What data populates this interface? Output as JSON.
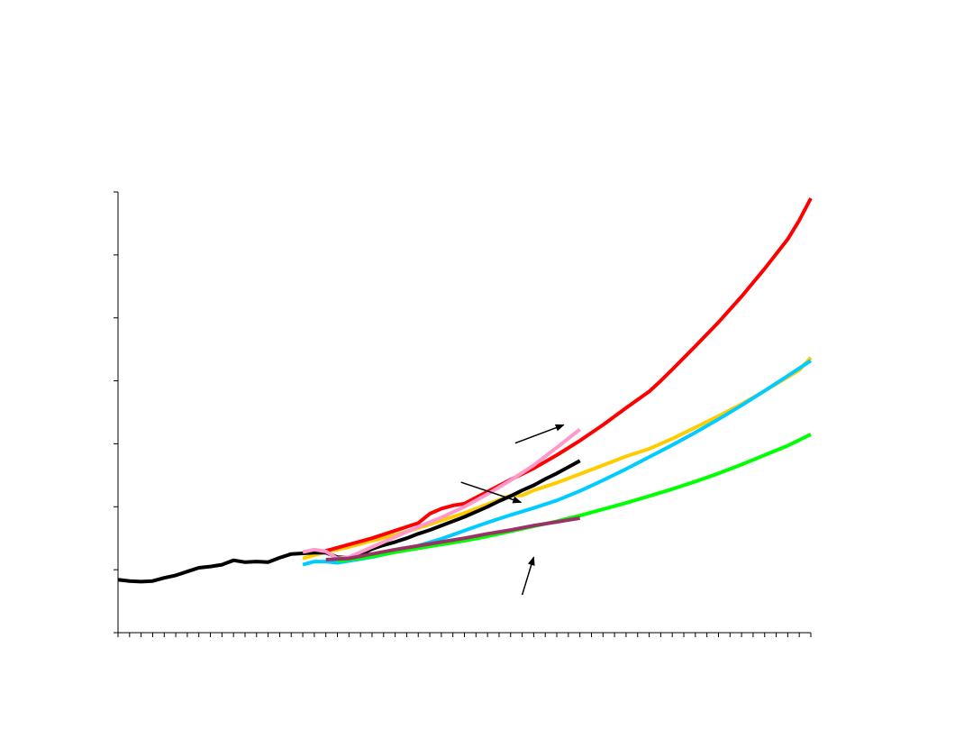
{
  "chart_data": {
    "type": "line",
    "title": "",
    "xlabel": "",
    "ylabel": "",
    "x_tick_count": 61,
    "xlim": [
      0,
      60
    ],
    "ylim": [
      0,
      7
    ],
    "y_tick_values": [
      0,
      1,
      2,
      3,
      4,
      5,
      6,
      7
    ],
    "grid": false,
    "legend": "none",
    "series": [
      {
        "color": "#000000",
        "points": [
          [
            0,
            0.84
          ],
          [
            1,
            0.82
          ],
          [
            2,
            0.81
          ],
          [
            3,
            0.82
          ],
          [
            4,
            0.87
          ],
          [
            5,
            0.91
          ],
          [
            6,
            0.97
          ],
          [
            7,
            1.03
          ],
          [
            8,
            1.05
          ],
          [
            9,
            1.08
          ],
          [
            10,
            1.15
          ],
          [
            11,
            1.12
          ],
          [
            12,
            1.13
          ],
          [
            13,
            1.12
          ],
          [
            14,
            1.19
          ],
          [
            15,
            1.25
          ],
          [
            16,
            1.26
          ],
          [
            17,
            1.27
          ],
          [
            18,
            1.27
          ],
          [
            19,
            1.2
          ],
          [
            20,
            1.19
          ],
          [
            21,
            1.24
          ],
          [
            22,
            1.33
          ],
          [
            23,
            1.39
          ],
          [
            24,
            1.44
          ],
          [
            25,
            1.5
          ],
          [
            26,
            1.57
          ],
          [
            27,
            1.63
          ],
          [
            28,
            1.7
          ],
          [
            29,
            1.77
          ],
          [
            30,
            1.84
          ],
          [
            31,
            1.92
          ],
          [
            32,
            2.0
          ],
          [
            33,
            2.09
          ],
          [
            34,
            2.17
          ],
          [
            35,
            2.26
          ],
          [
            36,
            2.34
          ],
          [
            37,
            2.44
          ],
          [
            38,
            2.53
          ],
          [
            39,
            2.63
          ],
          [
            40,
            2.73
          ]
        ]
      },
      {
        "color": "#ff0000",
        "points": [
          [
            16,
            1.27
          ],
          [
            18,
            1.3
          ],
          [
            20,
            1.4
          ],
          [
            22,
            1.5
          ],
          [
            24,
            1.62
          ],
          [
            26,
            1.74
          ],
          [
            27,
            1.89
          ],
          [
            28,
            1.97
          ],
          [
            29,
            2.02
          ],
          [
            30,
            2.05
          ],
          [
            32,
            2.24
          ],
          [
            34,
            2.43
          ],
          [
            36,
            2.61
          ],
          [
            38,
            2.82
          ],
          [
            40,
            3.05
          ],
          [
            42,
            3.3
          ],
          [
            44,
            3.57
          ],
          [
            46,
            3.83
          ],
          [
            47,
            4.0
          ],
          [
            48,
            4.18
          ],
          [
            50,
            4.55
          ],
          [
            52,
            4.93
          ],
          [
            54,
            5.34
          ],
          [
            56,
            5.78
          ],
          [
            58,
            6.25
          ],
          [
            59,
            6.55
          ],
          [
            60,
            6.9
          ]
        ]
      },
      {
        "color": "#ffcc00",
        "points": [
          [
            16,
            1.18
          ],
          [
            18,
            1.28
          ],
          [
            20,
            1.36
          ],
          [
            22,
            1.46
          ],
          [
            24,
            1.55
          ],
          [
            26,
            1.66
          ],
          [
            28,
            1.78
          ],
          [
            30,
            1.9
          ],
          [
            32,
            2.04
          ],
          [
            34,
            2.18
          ],
          [
            35,
            2.18
          ],
          [
            36,
            2.26
          ],
          [
            38,
            2.38
          ],
          [
            40,
            2.52
          ],
          [
            42,
            2.66
          ],
          [
            44,
            2.8
          ],
          [
            46,
            2.92
          ],
          [
            48,
            3.08
          ],
          [
            50,
            3.26
          ],
          [
            52,
            3.44
          ],
          [
            54,
            3.63
          ],
          [
            56,
            3.84
          ],
          [
            58,
            4.06
          ],
          [
            59,
            4.17
          ],
          [
            60,
            4.37
          ]
        ]
      },
      {
        "color": "#00ccff",
        "points": [
          [
            16,
            1.08
          ],
          [
            17,
            1.13
          ],
          [
            18,
            1.13
          ],
          [
            19,
            1.11
          ],
          [
            20,
            1.14
          ],
          [
            22,
            1.2
          ],
          [
            24,
            1.28
          ],
          [
            26,
            1.38
          ],
          [
            28,
            1.49
          ],
          [
            30,
            1.62
          ],
          [
            32,
            1.75
          ],
          [
            34,
            1.87
          ],
          [
            36,
            1.98
          ],
          [
            38,
            2.1
          ],
          [
            40,
            2.25
          ],
          [
            42,
            2.42
          ],
          [
            44,
            2.6
          ],
          [
            46,
            2.79
          ],
          [
            48,
            2.98
          ],
          [
            50,
            3.18
          ],
          [
            52,
            3.39
          ],
          [
            54,
            3.61
          ],
          [
            56,
            3.84
          ],
          [
            58,
            4.08
          ],
          [
            59,
            4.2
          ],
          [
            60,
            4.32
          ]
        ]
      },
      {
        "color": "#00ff00",
        "points": [
          [
            19,
            1.14
          ],
          [
            20,
            1.16
          ],
          [
            22,
            1.21
          ],
          [
            24,
            1.28
          ],
          [
            26,
            1.34
          ],
          [
            28,
            1.4
          ],
          [
            30,
            1.46
          ],
          [
            32,
            1.53
          ],
          [
            34,
            1.61
          ],
          [
            36,
            1.69
          ],
          [
            38,
            1.77
          ],
          [
            40,
            1.86
          ],
          [
            42,
            1.96
          ],
          [
            44,
            2.06
          ],
          [
            46,
            2.17
          ],
          [
            48,
            2.28
          ],
          [
            50,
            2.4
          ],
          [
            52,
            2.53
          ],
          [
            54,
            2.67
          ],
          [
            56,
            2.82
          ],
          [
            58,
            2.97
          ],
          [
            59,
            3.06
          ],
          [
            60,
            3.15
          ]
        ]
      },
      {
        "color": "#993366",
        "points": [
          [
            18,
            1.16
          ],
          [
            20,
            1.18
          ],
          [
            22,
            1.25
          ],
          [
            24,
            1.32
          ],
          [
            26,
            1.38
          ],
          [
            28,
            1.44
          ],
          [
            30,
            1.5
          ],
          [
            32,
            1.57
          ],
          [
            34,
            1.63
          ],
          [
            36,
            1.7
          ],
          [
            38,
            1.76
          ],
          [
            40,
            1.82
          ]
        ]
      },
      {
        "color": "#ff99cc",
        "points": [
          [
            16,
            1.28
          ],
          [
            17,
            1.32
          ],
          [
            18,
            1.29
          ],
          [
            19,
            1.18
          ],
          [
            20,
            1.2
          ],
          [
            22,
            1.36
          ],
          [
            24,
            1.52
          ],
          [
            26,
            1.68
          ],
          [
            28,
            1.83
          ],
          [
            30,
            2.0
          ],
          [
            32,
            2.2
          ],
          [
            34,
            2.42
          ],
          [
            36,
            2.66
          ],
          [
            38,
            2.94
          ],
          [
            40,
            3.23
          ]
        ]
      }
    ],
    "annotation_arrows": [
      {
        "from": [
          34.4,
          3.01
        ],
        "to": [
          38.6,
          3.3
        ]
      },
      {
        "from": [
          29.7,
          2.39
        ],
        "to": [
          34.9,
          2.07
        ]
      },
      {
        "from": [
          35,
          0.6
        ],
        "to": [
          36.0,
          1.2
        ]
      }
    ]
  }
}
